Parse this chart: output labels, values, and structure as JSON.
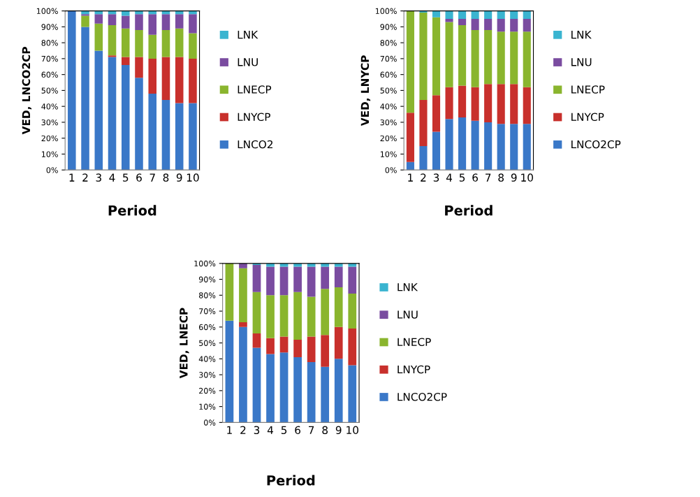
{
  "chart_data": [
    {
      "type": "bar",
      "stacked": true,
      "xlabel": "Period",
      "ylabel": "VED, LNCO2CP",
      "categories": [
        "1",
        "2",
        "3",
        "4",
        "5",
        "6",
        "7",
        "8",
        "9",
        "10"
      ],
      "ylim": [
        0,
        100
      ],
      "yticks": [
        {
          "value": 0,
          "label": "0%"
        },
        {
          "value": 10,
          "label": "10%"
        },
        {
          "value": 20,
          "label": "20%"
        },
        {
          "value": 30,
          "label": "30%"
        },
        {
          "value": 40,
          "label": "40%"
        },
        {
          "value": 50,
          "label": "50%"
        },
        {
          "value": 60,
          "label": "60%"
        },
        {
          "value": 70,
          "label": "70%"
        },
        {
          "value": 80,
          "label": "80%"
        },
        {
          "value": 90,
          "label": "90%"
        },
        {
          "value": 100,
          "label": "100%"
        }
      ],
      "grid": false,
      "legend": "right",
      "series": [
        {
          "name": "LNCO2",
          "color": "#3a78c8",
          "values": [
            100,
            90,
            75,
            71,
            66,
            58,
            48,
            44,
            42,
            42
          ]
        },
        {
          "name": "LNYCP",
          "color": "#c8302c",
          "values": [
            0,
            0,
            0,
            1,
            5,
            13,
            22,
            27,
            29,
            28
          ]
        },
        {
          "name": "LNECP",
          "color": "#8ab52e",
          "values": [
            0,
            7,
            17,
            19,
            18,
            17,
            15,
            17,
            18,
            16
          ]
        },
        {
          "name": "LNU",
          "color": "#7a4ca0",
          "values": [
            0,
            1,
            6,
            7,
            8,
            10,
            13,
            10,
            9,
            12
          ]
        },
        {
          "name": "LNK",
          "color": "#3ab4d0",
          "values": [
            0,
            2,
            2,
            2,
            3,
            2,
            2,
            2,
            2,
            2
          ]
        }
      ]
    },
    {
      "type": "bar",
      "stacked": true,
      "xlabel": "Period",
      "ylabel": "VED, LNYCP",
      "categories": [
        "1",
        "2",
        "3",
        "4",
        "5",
        "6",
        "7",
        "8",
        "9",
        "10"
      ],
      "ylim": [
        0,
        100
      ],
      "yticks": [
        {
          "value": 0,
          "label": "0%"
        },
        {
          "value": 10,
          "label": "10%"
        },
        {
          "value": 20,
          "label": "20%"
        },
        {
          "value": 30,
          "label": "30%"
        },
        {
          "value": 40,
          "label": "40%"
        },
        {
          "value": 50,
          "label": "50%"
        },
        {
          "value": 60,
          "label": "60%"
        },
        {
          "value": 70,
          "label": "70%"
        },
        {
          "value": 80,
          "label": "80%"
        },
        {
          "value": 90,
          "label": "90%"
        },
        {
          "value": 100,
          "label": "100%"
        }
      ],
      "grid": false,
      "legend": "right",
      "series": [
        {
          "name": "LNCO2CP",
          "color": "#3a78c8",
          "values": [
            5,
            15,
            24,
            32,
            33,
            31,
            30,
            29,
            29,
            29
          ]
        },
        {
          "name": "LNYCP",
          "color": "#c8302c",
          "values": [
            31,
            29,
            23,
            20,
            20,
            21,
            24,
            25,
            25,
            23
          ]
        },
        {
          "name": "LNECP",
          "color": "#8ab52e",
          "values": [
            64,
            55,
            49,
            41,
            38,
            36,
            34,
            33,
            33,
            35
          ]
        },
        {
          "name": "LNU",
          "color": "#7a4ca0",
          "values": [
            0,
            0,
            0,
            2,
            4,
            7,
            7,
            8,
            8,
            8
          ]
        },
        {
          "name": "LNK",
          "color": "#3ab4d0",
          "values": [
            0,
            1,
            4,
            5,
            5,
            5,
            5,
            5,
            5,
            5
          ]
        }
      ]
    },
    {
      "type": "bar",
      "stacked": true,
      "xlabel": "Period",
      "ylabel": "VED, LNECP",
      "categories": [
        "1",
        "2",
        "3",
        "4",
        "5",
        "6",
        "7",
        "8",
        "9",
        "10"
      ],
      "ylim": [
        0,
        100
      ],
      "yticks": [
        {
          "value": 0,
          "label": "0%"
        },
        {
          "value": 10,
          "label": "10%"
        },
        {
          "value": 20,
          "label": "20%"
        },
        {
          "value": 30,
          "label": "30%"
        },
        {
          "value": 40,
          "label": "40%"
        },
        {
          "value": 50,
          "label": "50%"
        },
        {
          "value": 60,
          "label": "60%"
        },
        {
          "value": 70,
          "label": "70%"
        },
        {
          "value": 80,
          "label": "80%"
        },
        {
          "value": 90,
          "label": "90%"
        },
        {
          "value": 100,
          "label": "100%"
        }
      ],
      "grid": false,
      "legend": "right",
      "series": [
        {
          "name": "LNCO2CP",
          "color": "#3a78c8",
          "values": [
            64,
            60,
            47,
            43,
            44,
            41,
            38,
            35,
            40,
            36
          ]
        },
        {
          "name": "LNYCP",
          "color": "#c8302c",
          "values": [
            0,
            3,
            9,
            10,
            10,
            11,
            16,
            20,
            20,
            23
          ]
        },
        {
          "name": "LNECP",
          "color": "#8ab52e",
          "values": [
            36,
            34,
            26,
            27,
            26,
            30,
            25,
            29,
            25,
            22
          ]
        },
        {
          "name": "LNU",
          "color": "#7a4ca0",
          "values": [
            0,
            3,
            17,
            18,
            18,
            16,
            19,
            14,
            13,
            17
          ]
        },
        {
          "name": "LNK",
          "color": "#3ab4d0",
          "values": [
            0,
            0,
            1,
            2,
            2,
            2,
            2,
            2,
            2,
            2
          ]
        }
      ]
    }
  ]
}
